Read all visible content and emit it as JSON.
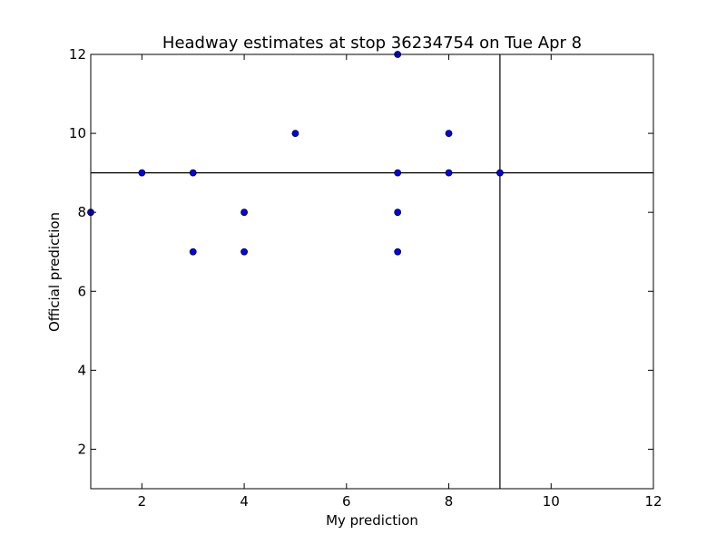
{
  "chart_data": {
    "type": "scatter",
    "title": "Headway estimates at stop 36234754 on Tue Apr 8",
    "xlabel": "My prediction",
    "ylabel": "Official prediction",
    "xlim": [
      1,
      12
    ],
    "ylim": [
      1,
      12
    ],
    "x_ticks": [
      2,
      4,
      6,
      8,
      10,
      12
    ],
    "y_ticks": [
      2,
      4,
      6,
      8,
      10,
      12
    ],
    "grid": false,
    "series": [
      {
        "points": [
          [
            1,
            8
          ],
          [
            2,
            9
          ],
          [
            3,
            9
          ],
          [
            3,
            7
          ],
          [
            4,
            8
          ],
          [
            4,
            7
          ],
          [
            5,
            10
          ],
          [
            7,
            12
          ],
          [
            7,
            9
          ],
          [
            7,
            8
          ],
          [
            7,
            7
          ],
          [
            8,
            10
          ],
          [
            8,
            9
          ],
          [
            9,
            9
          ]
        ]
      }
    ],
    "reference_lines": {
      "horizontal_y": 9,
      "vertical_x": 9
    },
    "colors": {
      "marker_fill": "#0000ff",
      "marker_edge": "#000000",
      "axes": "#000000",
      "lines": "#000000"
    }
  }
}
